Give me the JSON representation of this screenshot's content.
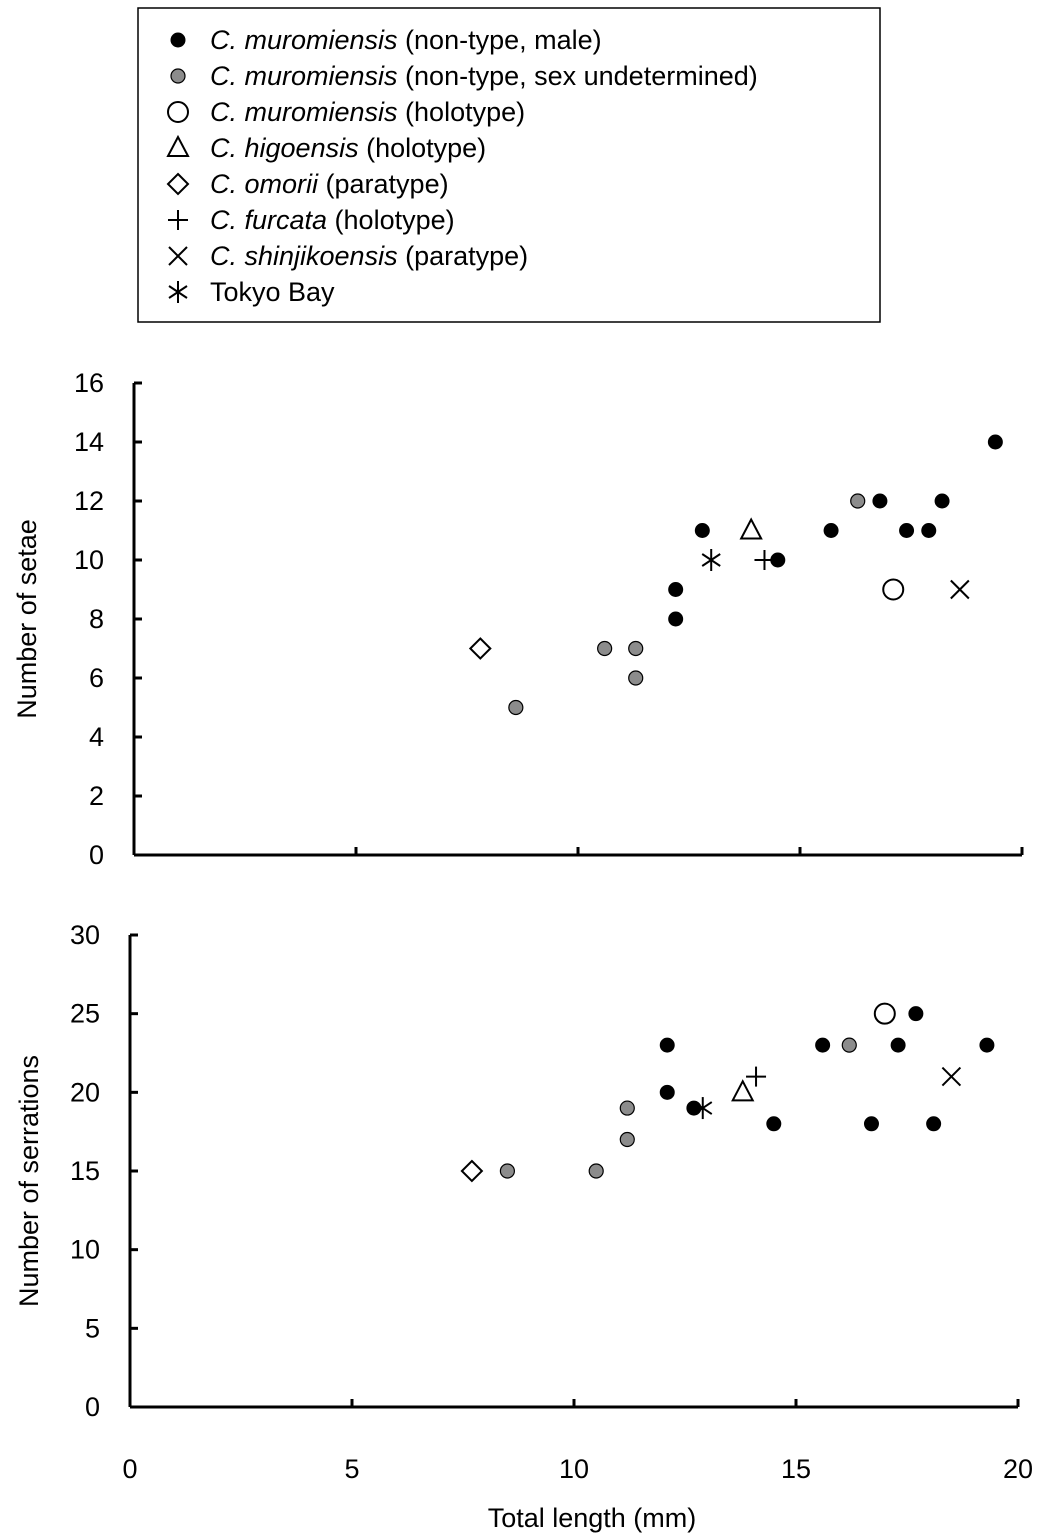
{
  "legend": [
    {
      "key": "male",
      "marker": "filled-circle",
      "species": "C. muromiensis",
      "note": " (non-type, male)"
    },
    {
      "key": "undet",
      "marker": "gray-circle",
      "species": "C. muromiensis",
      "note": " (non-type, sex undetermined)"
    },
    {
      "key": "muro_holo",
      "marker": "open-circle",
      "species": "C. muromiensis",
      "note": " (holotype)"
    },
    {
      "key": "higo",
      "marker": "open-triangle",
      "species": "C. higoensis",
      "note": " (holotype)"
    },
    {
      "key": "omorii",
      "marker": "open-diamond",
      "species": "C. omorii",
      "note": " (paratype)"
    },
    {
      "key": "furcata",
      "marker": "plus",
      "species": "C. furcata",
      "note": " (holotype)"
    },
    {
      "key": "shinji",
      "marker": "cross",
      "species": "C. shinjikoensis",
      "note": " (paratype)"
    },
    {
      "key": "tokyo",
      "marker": "asterisk",
      "species": "",
      "note": "Tokyo Bay"
    }
  ],
  "colors": {
    "filled": "#000000",
    "gray": "#8c8c8c",
    "open": "#ffffff",
    "stroke": "#000000"
  },
  "chart_data": [
    {
      "type": "scatter",
      "title": "",
      "xlabel": "",
      "ylabel": "Number of setae",
      "xlim": [
        0,
        20
      ],
      "ylim": [
        0,
        16
      ],
      "xticks": [
        0,
        5,
        10,
        15,
        20
      ],
      "yticks": [
        0,
        2,
        4,
        6,
        8,
        10,
        12,
        14,
        16
      ],
      "show_x_tick_labels": false,
      "grid": false,
      "series": [
        {
          "key": "male",
          "marker": "filled-circle",
          "points": [
            [
              12.2,
              9
            ],
            [
              12.2,
              8
            ],
            [
              12.8,
              11
            ],
            [
              14.5,
              10
            ],
            [
              15.7,
              11
            ],
            [
              16.8,
              12
            ],
            [
              17.4,
              11
            ],
            [
              17.9,
              11
            ],
            [
              18.2,
              12
            ],
            [
              19.4,
              14
            ]
          ]
        },
        {
          "key": "undet",
          "marker": "gray-circle",
          "points": [
            [
              8.6,
              5
            ],
            [
              10.6,
              7
            ],
            [
              11.3,
              7
            ],
            [
              11.3,
              6
            ],
            [
              16.3,
              12
            ]
          ]
        },
        {
          "key": "muro_holo",
          "marker": "open-circle",
          "points": [
            [
              17.1,
              9
            ]
          ]
        },
        {
          "key": "higo",
          "marker": "open-triangle",
          "points": [
            [
              13.9,
              11
            ]
          ]
        },
        {
          "key": "omorii",
          "marker": "open-diamond",
          "points": [
            [
              7.8,
              7
            ]
          ]
        },
        {
          "key": "furcata",
          "marker": "plus",
          "points": [
            [
              14.2,
              10
            ]
          ]
        },
        {
          "key": "shinji",
          "marker": "cross",
          "points": [
            [
              18.6,
              9
            ]
          ]
        },
        {
          "key": "tokyo",
          "marker": "asterisk",
          "points": [
            [
              13.0,
              10
            ]
          ]
        }
      ]
    },
    {
      "type": "scatter",
      "title": "",
      "xlabel": "Total length (mm)",
      "ylabel": "Number of serrations",
      "xlim": [
        0,
        20
      ],
      "ylim": [
        0,
        30
      ],
      "xticks": [
        0,
        5,
        10,
        15,
        20
      ],
      "yticks": [
        0,
        5,
        10,
        15,
        20,
        25,
        30
      ],
      "show_x_tick_labels": true,
      "grid": false,
      "series": [
        {
          "key": "male",
          "marker": "filled-circle",
          "points": [
            [
              12.1,
              23
            ],
            [
              12.1,
              20
            ],
            [
              12.7,
              19
            ],
            [
              14.5,
              18
            ],
            [
              15.6,
              23
            ],
            [
              16.7,
              18
            ],
            [
              17.3,
              23
            ],
            [
              17.7,
              25
            ],
            [
              18.1,
              18
            ],
            [
              19.3,
              23
            ]
          ]
        },
        {
          "key": "undet",
          "marker": "gray-circle",
          "points": [
            [
              8.5,
              15
            ],
            [
              10.5,
              15
            ],
            [
              11.2,
              19
            ],
            [
              11.2,
              17
            ],
            [
              16.2,
              23
            ]
          ]
        },
        {
          "key": "muro_holo",
          "marker": "open-circle",
          "points": [
            [
              17.0,
              25
            ]
          ]
        },
        {
          "key": "higo",
          "marker": "open-triangle",
          "points": [
            [
              13.8,
              20
            ]
          ]
        },
        {
          "key": "omorii",
          "marker": "open-diamond",
          "points": [
            [
              7.7,
              15
            ]
          ]
        },
        {
          "key": "furcata",
          "marker": "plus",
          "points": [
            [
              14.1,
              21
            ]
          ]
        },
        {
          "key": "shinji",
          "marker": "cross",
          "points": [
            [
              18.5,
              21
            ]
          ]
        },
        {
          "key": "tokyo",
          "marker": "asterisk",
          "points": [
            [
              12.9,
              19
            ]
          ]
        }
      ]
    }
  ]
}
